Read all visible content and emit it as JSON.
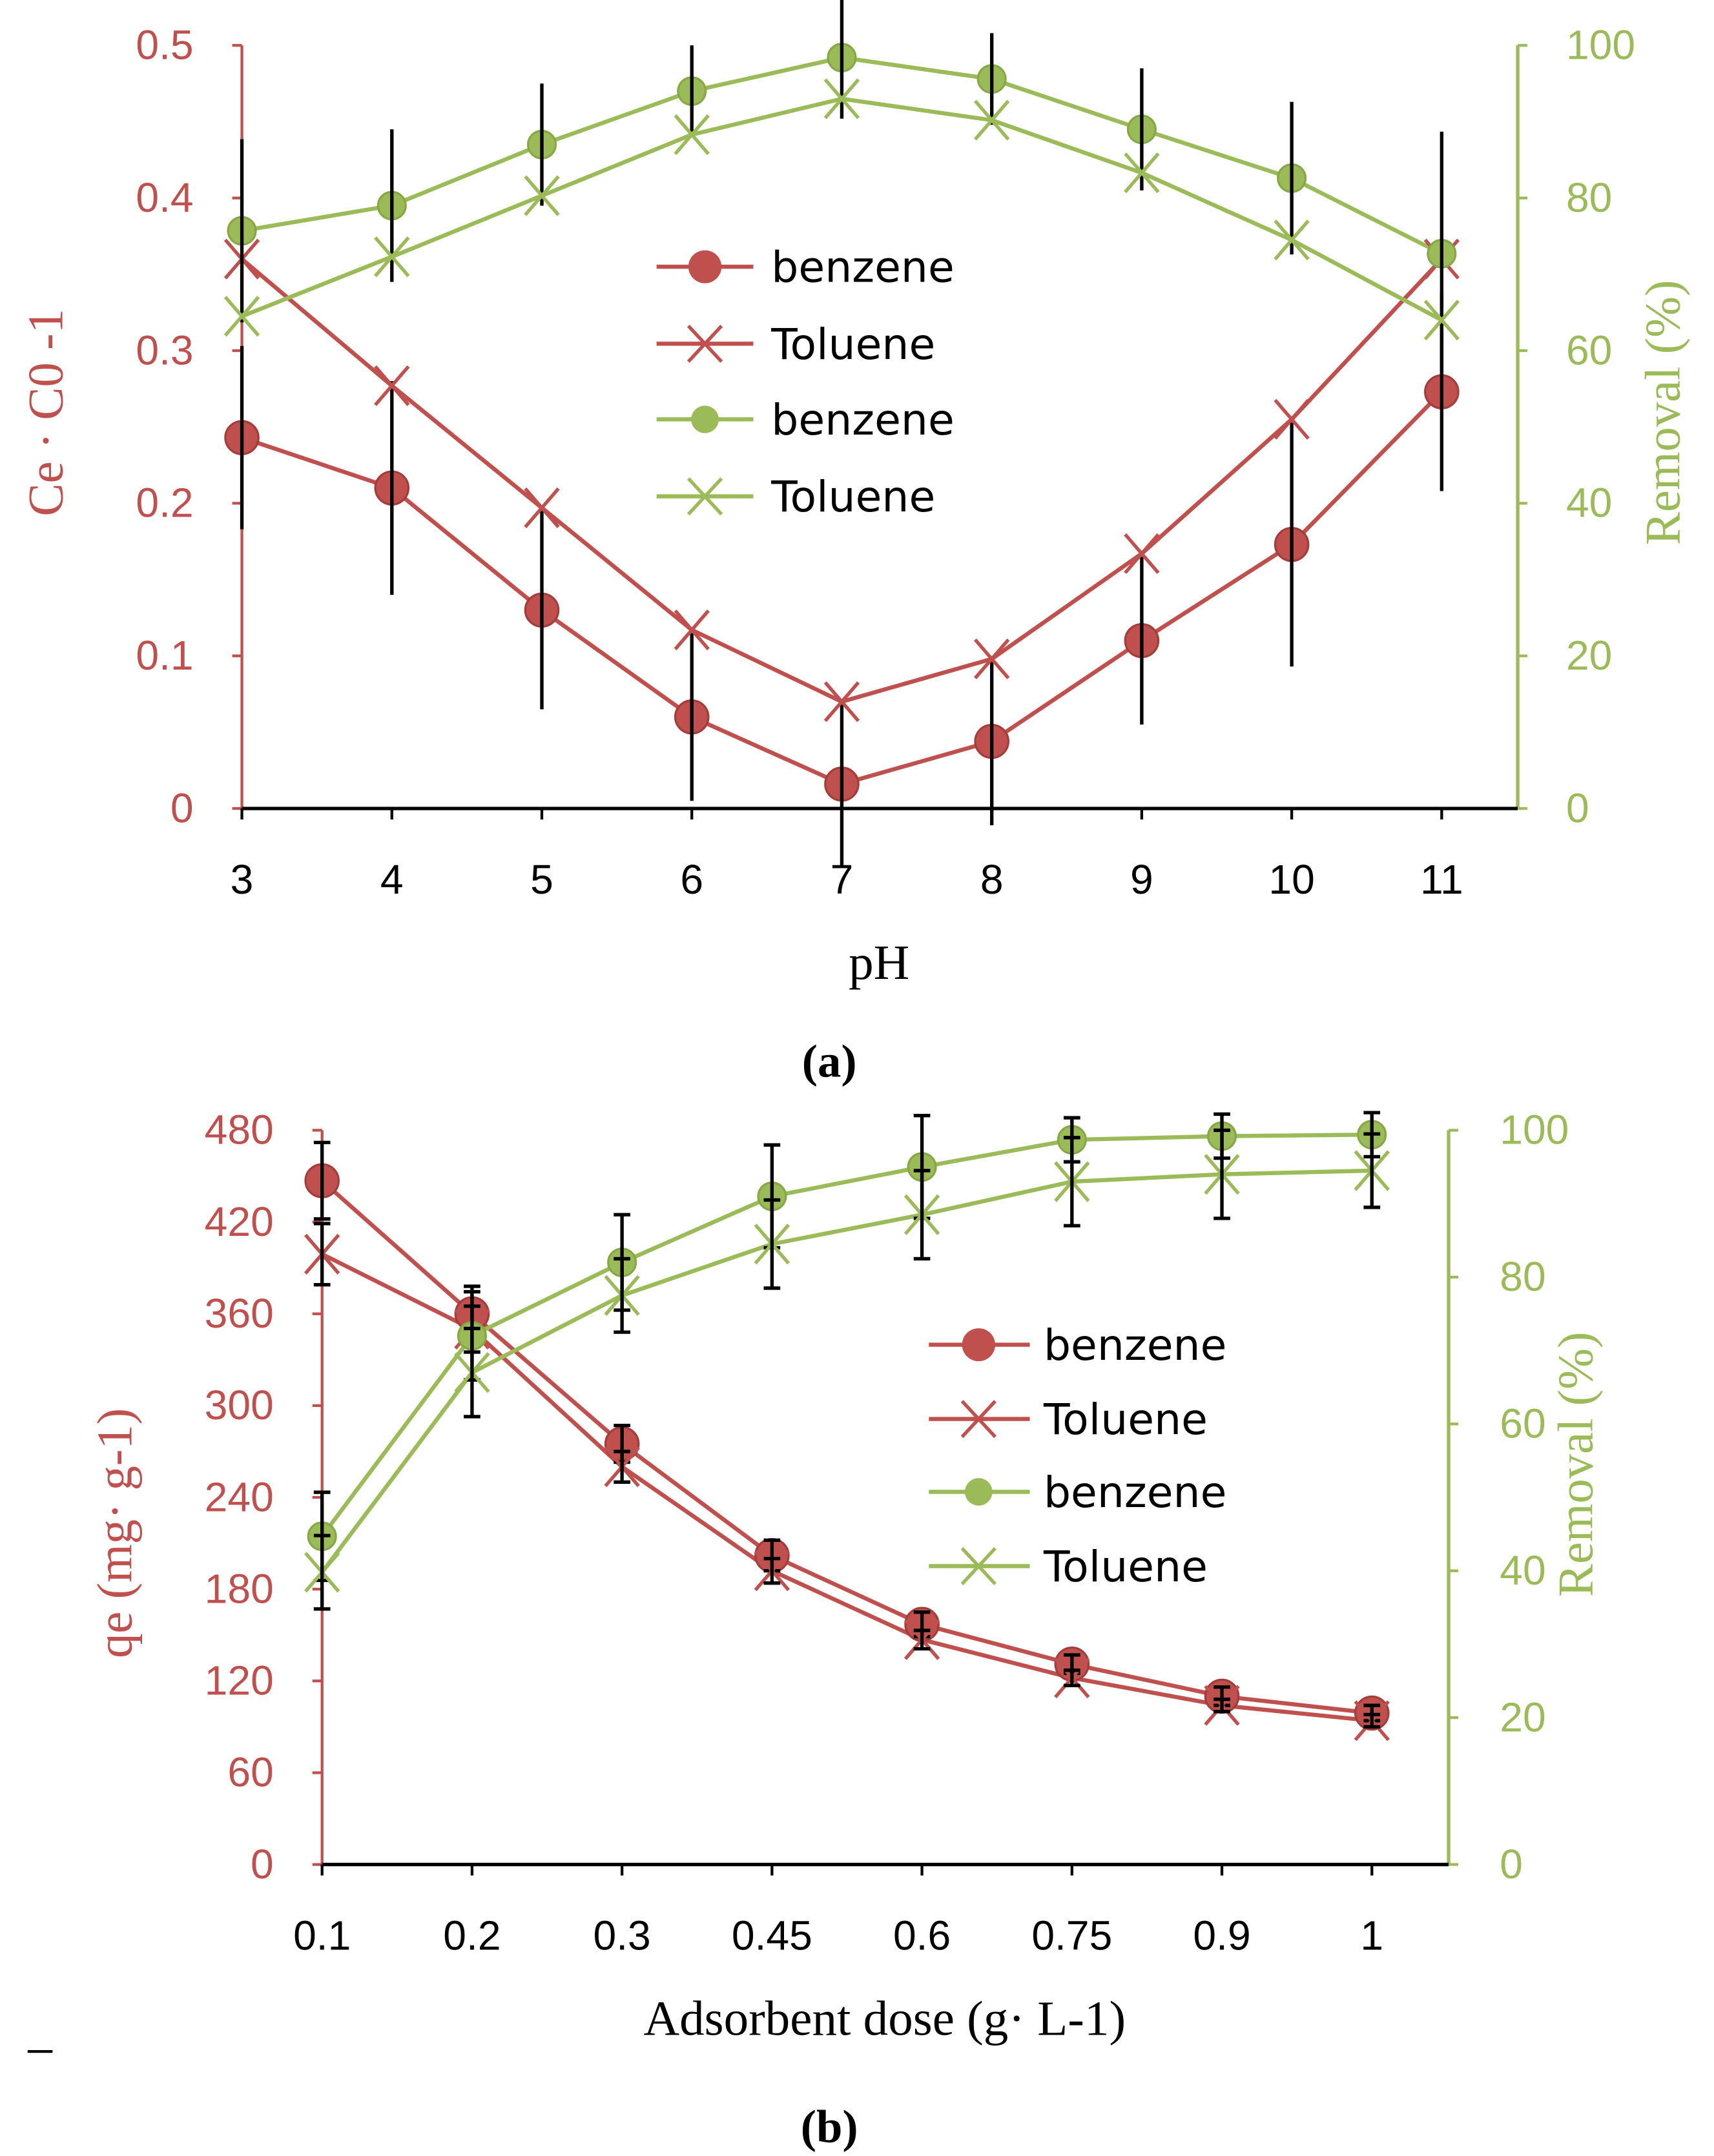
{
  "colors": {
    "red": "#c0504d",
    "green": "#9bbb59",
    "error": "#000000"
  },
  "chart_data": [
    {
      "type": "line",
      "panel_label": "(a)",
      "xlabel": "pH",
      "ylabel_left": "Ce · C0 -1",
      "ylabel_right": "Removal (%)",
      "categories": [
        "3",
        "4",
        "5",
        "6",
        "7",
        "8",
        "9",
        "10",
        "11"
      ],
      "ylim_left": [
        0,
        0.5
      ],
      "yticks_left": [
        "0",
        "0.1",
        "0.2",
        "0.3",
        "0.4",
        "0.5"
      ],
      "ylim_right": [
        0,
        100
      ],
      "yticks_right": [
        "0",
        "20",
        "40",
        "60",
        "80",
        "100"
      ],
      "legend_placement": "center",
      "series": [
        {
          "name": "benzene",
          "axis": "left",
          "color": "red",
          "marker": "circle",
          "values": [
            0.243,
            0.21,
            0.13,
            0.06,
            0.016,
            0.044,
            0.11,
            0.173,
            0.273
          ],
          "errors": [
            0.06,
            0.07,
            0.065,
            0.055,
            0.055,
            0.055,
            0.055,
            0.08,
            0.065
          ]
        },
        {
          "name": "Toluene",
          "axis": "left",
          "color": "red",
          "marker": "x",
          "values": [
            0.36,
            0.277,
            0.197,
            0.117,
            0.07,
            0.098,
            0.167,
            0.255,
            0.36
          ],
          "errors": [
            0,
            0,
            0,
            0,
            0,
            0,
            0,
            0,
            0
          ]
        },
        {
          "name": "benzene",
          "axis": "right",
          "color": "green",
          "marker": "circle",
          "values": [
            75.7,
            79,
            87,
            94,
            98.4,
            95.6,
            89,
            82.6,
            72.7
          ],
          "errors": [
            12,
            10,
            8,
            6,
            8,
            6,
            8,
            10,
            16
          ]
        },
        {
          "name": "Toluene",
          "axis": "right",
          "color": "green",
          "marker": "x",
          "values": [
            64.5,
            72.3,
            80.3,
            88.3,
            93,
            90.2,
            83.3,
            74.5,
            64
          ],
          "errors": [
            0,
            0,
            0,
            0,
            0,
            0,
            0,
            0,
            0
          ]
        }
      ]
    },
    {
      "type": "line",
      "panel_label": "(b)",
      "xlabel": "Adsorbent dose (g· L-1)",
      "ylabel_left": "qe (mg· g-1)",
      "ylabel_right": "Removal (%)",
      "categories": [
        "0.1",
        "0.2",
        "0.3",
        "0.45",
        "0.6",
        "0.75",
        "0.9",
        "1"
      ],
      "ylim_left": [
        0,
        480
      ],
      "yticks_left": [
        "0",
        "60",
        "120",
        "180",
        "240",
        "300",
        "360",
        "420",
        "480"
      ],
      "ylim_right": [
        0,
        100
      ],
      "yticks_right": [
        "0",
        "20",
        "40",
        "60",
        "80",
        "100"
      ],
      "legend_placement": "center-right",
      "series": [
        {
          "name": "benzene",
          "axis": "left",
          "color": "red",
          "marker": "circle",
          "values": [
            447,
            360,
            275,
            202,
            157,
            131,
            110,
            99
          ],
          "errors": [
            25,
            18,
            12,
            10,
            8,
            6,
            6,
            5
          ]
        },
        {
          "name": "Toluene",
          "axis": "left",
          "color": "red",
          "marker": "x",
          "values": [
            399,
            350,
            260,
            192,
            147,
            122,
            104,
            94
          ],
          "errors": [
            20,
            15,
            10,
            8,
            6,
            5,
            4,
            4
          ]
        },
        {
          "name": "benzene",
          "axis": "right",
          "color": "green",
          "marker": "circle",
          "values": [
            44.7,
            72,
            82,
            91,
            95,
            98.7,
            99.2,
            99.4
          ],
          "errors": [
            6,
            6,
            6.5,
            7,
            7,
            3,
            3,
            3
          ]
        },
        {
          "name": "Toluene",
          "axis": "right",
          "color": "green",
          "marker": "x",
          "values": [
            39.8,
            67,
            77.5,
            84.5,
            88.5,
            93,
            94,
            94.5
          ],
          "errors": [
            5,
            6,
            5,
            6,
            6,
            6,
            6,
            5
          ]
        }
      ]
    }
  ]
}
